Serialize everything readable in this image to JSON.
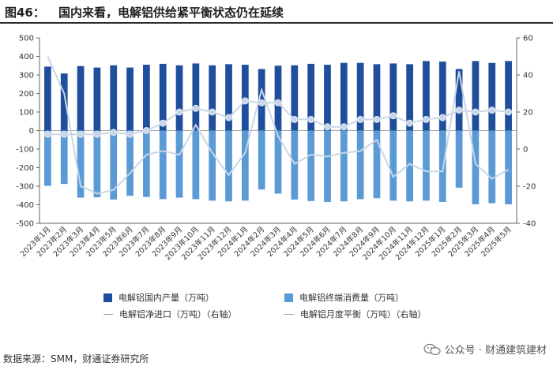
{
  "header": {
    "figure_number": "图46：",
    "title": "国内来看，电解铝供给紧平衡状态仍在延续"
  },
  "chart_data": {
    "type": "bar",
    "title": "国内来看，电解铝供给紧平衡状态仍在延续",
    "categories": [
      "2023年1月",
      "2023年2月",
      "2023年3月",
      "2023年4月",
      "2023年5月",
      "2023年6月",
      "2023年7月",
      "2023年8月",
      "2023年9月",
      "2023年10月",
      "2023年11月",
      "2023年12月",
      "2024年1月",
      "2024年2月",
      "2024年3月",
      "2024年4月",
      "2024年5月",
      "2024年6月",
      "2024年7月",
      "2024年8月",
      "2024年9月",
      "2024年10月",
      "2024年11月",
      "2024年12月",
      "2025年1月",
      "2025年2月",
      "2025年3月",
      "2025年4月",
      "2025年5月"
    ],
    "left_axis": {
      "ylim": [
        -500,
        500
      ],
      "ticks": [
        -500,
        -400,
        -300,
        -200,
        -100,
        0,
        100,
        200,
        300,
        400,
        500
      ]
    },
    "right_axis": {
      "ylim": [
        -40,
        60
      ],
      "ticks": [
        -40,
        -20,
        0,
        20,
        40,
        60
      ]
    },
    "grid": false,
    "series": [
      {
        "name": "电解铝国内产量（万吨）",
        "axis": "left",
        "kind": "bar",
        "color": "#1f4e9c",
        "values": [
          345,
          308,
          348,
          340,
          352,
          340,
          355,
          360,
          352,
          362,
          352,
          358,
          355,
          332,
          350,
          352,
          360,
          355,
          365,
          365,
          358,
          362,
          358,
          375,
          372,
          332,
          375,
          365,
          375
        ]
      },
      {
        "name": "电解铝终端消费量（万吨）",
        "axis": "left",
        "kind": "bar",
        "color": "#5b9bd5",
        "values": [
          -298,
          -288,
          -362,
          -360,
          -372,
          -352,
          -358,
          -370,
          -362,
          -370,
          -378,
          -382,
          -378,
          -318,
          -340,
          -372,
          -380,
          -385,
          -382,
          -370,
          -365,
          -378,
          -382,
          -378,
          -385,
          -308,
          -398,
          -392,
          -398
        ]
      },
      {
        "name": "电解铝净进口（万吨）（右轴）",
        "axis": "right",
        "kind": "line",
        "color": "#c9d6e8",
        "values": [
          8,
          8,
          8,
          8,
          9,
          8,
          10,
          14,
          20,
          22,
          20,
          17,
          26,
          25,
          25,
          16,
          16,
          12,
          12,
          16,
          16,
          18,
          14,
          16,
          17,
          21,
          20,
          21,
          20
        ]
      },
      {
        "name": "电解铝月度平衡（万吨）（右轴）",
        "axis": "right",
        "kind": "line",
        "color": "#c9d6e8",
        "values": [
          50,
          30,
          -20,
          -24,
          -22,
          -13,
          -3,
          -1,
          -3,
          13,
          -2,
          -14,
          -2,
          32,
          7,
          -8,
          -3,
          -4,
          -2,
          -1,
          5,
          -15,
          -8,
          -12,
          -12,
          42,
          -8,
          -16,
          -11
        ]
      }
    ]
  },
  "legend": {
    "item1": "电解铝国内产量（万吨）",
    "item2": "电解铝终端消费量（万吨）",
    "item3": "电解铝净进口（万吨）（右轴）",
    "item4": "电解铝月度平衡（万吨）（右轴）"
  },
  "footer": {
    "source": "数据来源：SMM，财通证券研究所",
    "watermark": "公众号 · 财通建筑建材"
  }
}
